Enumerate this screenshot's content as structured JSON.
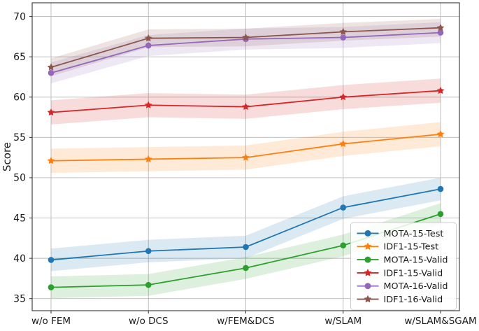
{
  "figure": {
    "background": "#ffffff",
    "axis_color": "#333333",
    "grid_color": "#b8b8b8",
    "legend": {
      "position": "lower right",
      "background": "#ffffff",
      "border_color": "#cccccc",
      "opacity": 0.85
    }
  },
  "chart_data": {
    "type": "line",
    "title": "",
    "xlabel": "",
    "ylabel": "Score",
    "categories": [
      "w/o FEM",
      "w/o DCS",
      "w/FEM&DCS",
      "w/SLAM",
      "w/SLAM&SGAM"
    ],
    "yticks": [
      35,
      40,
      45,
      50,
      55,
      60,
      65,
      70
    ],
    "ylim": [
      33.5,
      71.7
    ],
    "grid": true,
    "legend_position": "lower right",
    "series": [
      {
        "name": "MOTA-15-Test",
        "color": "#1f77b4",
        "marker": "circle",
        "values": [
          39.8,
          40.9,
          41.4,
          46.3,
          48.6
        ],
        "band_halfwidth": 1.4
      },
      {
        "name": "IDF1-15-Test",
        "color": "#ff7f0e",
        "marker": "star",
        "values": [
          52.1,
          52.3,
          52.5,
          54.2,
          55.4
        ],
        "band_halfwidth": 1.5
      },
      {
        "name": "MOTA-15-Valid",
        "color": "#2ca02c",
        "marker": "circle",
        "values": [
          36.4,
          36.7,
          38.8,
          41.6,
          45.5
        ],
        "band_halfwidth": 1.35
      },
      {
        "name": "IDF1-15-Valid",
        "color": "#d62728",
        "marker": "star",
        "values": [
          58.1,
          59.0,
          58.8,
          60.0,
          60.8
        ],
        "band_halfwidth": 1.5
      },
      {
        "name": "MOTA-16-Valid",
        "color": "#9467bd",
        "marker": "circle",
        "values": [
          63.0,
          66.4,
          67.2,
          67.4,
          68.0
        ],
        "band_halfwidth": 1.3
      },
      {
        "name": "IDF1-16-Valid",
        "color": "#8c564b",
        "marker": "star",
        "values": [
          63.7,
          67.3,
          67.4,
          68.1,
          68.6
        ],
        "band_halfwidth": 1.1
      }
    ]
  }
}
